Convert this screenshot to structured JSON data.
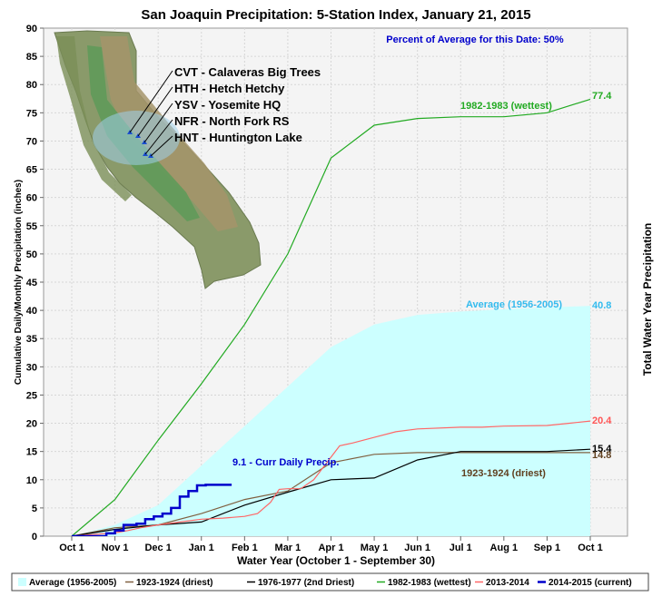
{
  "chart_data": {
    "type": "line",
    "title": "San Joaquin Precipitation: 5-Station Index, January 21, 2015",
    "subtitle": "Percent of Average for this Date: 50%",
    "xlabel": "Water Year (October 1 - September 30)",
    "ylabel": "Cumulative Daily/Monthly Precipitation (inches)",
    "ylabel_right": "Total Water Year Precipitation",
    "ylim": [
      0,
      90
    ],
    "yticks": [
      "0",
      "5",
      "10",
      "15",
      "20",
      "25",
      "30",
      "35",
      "40",
      "45",
      "50",
      "55",
      "60",
      "65",
      "70",
      "75",
      "80",
      "85",
      "90"
    ],
    "xticks": [
      "Oct 1",
      "Nov 1",
      "Dec 1",
      "Jan 1",
      "Feb 1",
      "Mar 1",
      "Apr 1",
      "May 1",
      "Jun 1",
      "Jul 1",
      "Aug 1",
      "Sep 1",
      "Oct 1"
    ],
    "grid": true,
    "legend_position": "bottom",
    "series": [
      {
        "name": "Average (1956-2005)",
        "kind": "area",
        "color": "#ccffff",
        "x": [
          0,
          1,
          2,
          3,
          4,
          5,
          6,
          7,
          8,
          9,
          10,
          11,
          12
        ],
        "values": [
          0,
          2,
          5.5,
          12.5,
          19.5,
          26.5,
          33.5,
          37.5,
          39.2,
          39.8,
          40.2,
          40.5,
          40.8
        ],
        "label": "Average (1956-2005)",
        "label_color": "#33bbee"
      },
      {
        "name": "1923-1924 (driest)",
        "color": "#806040",
        "x": [
          0,
          1,
          2,
          3,
          4,
          5,
          6,
          7,
          8,
          9,
          10,
          11,
          12
        ],
        "values": [
          0,
          1.5,
          2,
          4,
          6.5,
          8,
          13,
          14.5,
          14.8,
          14.8,
          14.8,
          14.8,
          14.8
        ],
        "label": "1923-1924 (driest)",
        "label_color": "#604020"
      },
      {
        "name": "1976-1977 (2nd Driest)",
        "color": "#000000",
        "x": [
          0,
          1,
          2,
          3,
          4,
          5,
          6,
          7,
          8,
          9,
          10,
          11,
          12
        ],
        "values": [
          0,
          1.2,
          2,
          2.5,
          5.5,
          7.8,
          10,
          10.3,
          13.5,
          15,
          15,
          15,
          15.4
        ]
      },
      {
        "name": "1982-1983 (wettest)",
        "color": "#22aa22",
        "x": [
          0,
          1,
          2,
          3,
          4,
          5,
          6,
          7,
          8,
          9,
          10,
          11,
          12
        ],
        "values": [
          0,
          6.5,
          17,
          27,
          37.5,
          50,
          67,
          72.8,
          74,
          74.3,
          74.3,
          75,
          77.4
        ],
        "label": "1982-1983 (wettest)",
        "label_color": "#22aa22"
      },
      {
        "name": "2013-2014",
        "color": "#ff6666",
        "x": [
          0,
          1,
          1.3,
          1.6,
          2,
          2.5,
          3,
          3.5,
          4,
          4.3,
          4.6,
          4.8,
          5,
          5.3,
          5.6,
          6,
          6.2,
          6.5,
          7,
          7.5,
          8,
          9,
          9.5,
          10,
          11,
          11.5,
          12
        ],
        "values": [
          0,
          0.6,
          1,
          1.5,
          2,
          2.5,
          3,
          3.2,
          3.5,
          4,
          6,
          8.3,
          8.4,
          8.4,
          10,
          14,
          16,
          16.5,
          17.5,
          18.5,
          19,
          19.3,
          19.3,
          19.5,
          19.6,
          20,
          20.4
        ]
      },
      {
        "name": "2014-2015 (current)",
        "color": "#0000cc",
        "x": [
          0,
          0.8,
          1.0,
          1.2,
          1.5,
          1.7,
          1.9,
          2.1,
          2.3,
          2.5,
          2.7,
          2.9,
          3.1,
          3.3,
          3.5,
          3.7
        ],
        "values": [
          0,
          0.5,
          1,
          2,
          2.2,
          3,
          3.5,
          4,
          5,
          7,
          8,
          9,
          9.1,
          9.1,
          9.1,
          9.1
        ]
      }
    ],
    "end_labels": [
      {
        "text": "77.4",
        "series": "1982-1983 (wettest)",
        "color": "#22aa22"
      },
      {
        "text": "40.8",
        "series": "Average (1956-2005)",
        "color": "#33bbee"
      },
      {
        "text": "20.4",
        "series": "2013-2014",
        "color": "#ff5555"
      },
      {
        "text": "15.4",
        "series": "1976-1977 (2nd Driest)",
        "color": "#000000"
      },
      {
        "text": "14.8",
        "series": "1923-1924 (driest)",
        "color": "#604020"
      }
    ],
    "current_label": "9.1 -  Curr Daily Precip.",
    "stations": [
      "CVT - Calaveras Big Trees",
      "HTH - Hetch Hetchy",
      "YSV - Yosemite HQ",
      "NFR - North Fork RS",
      "HNT - Huntington Lake"
    ]
  }
}
